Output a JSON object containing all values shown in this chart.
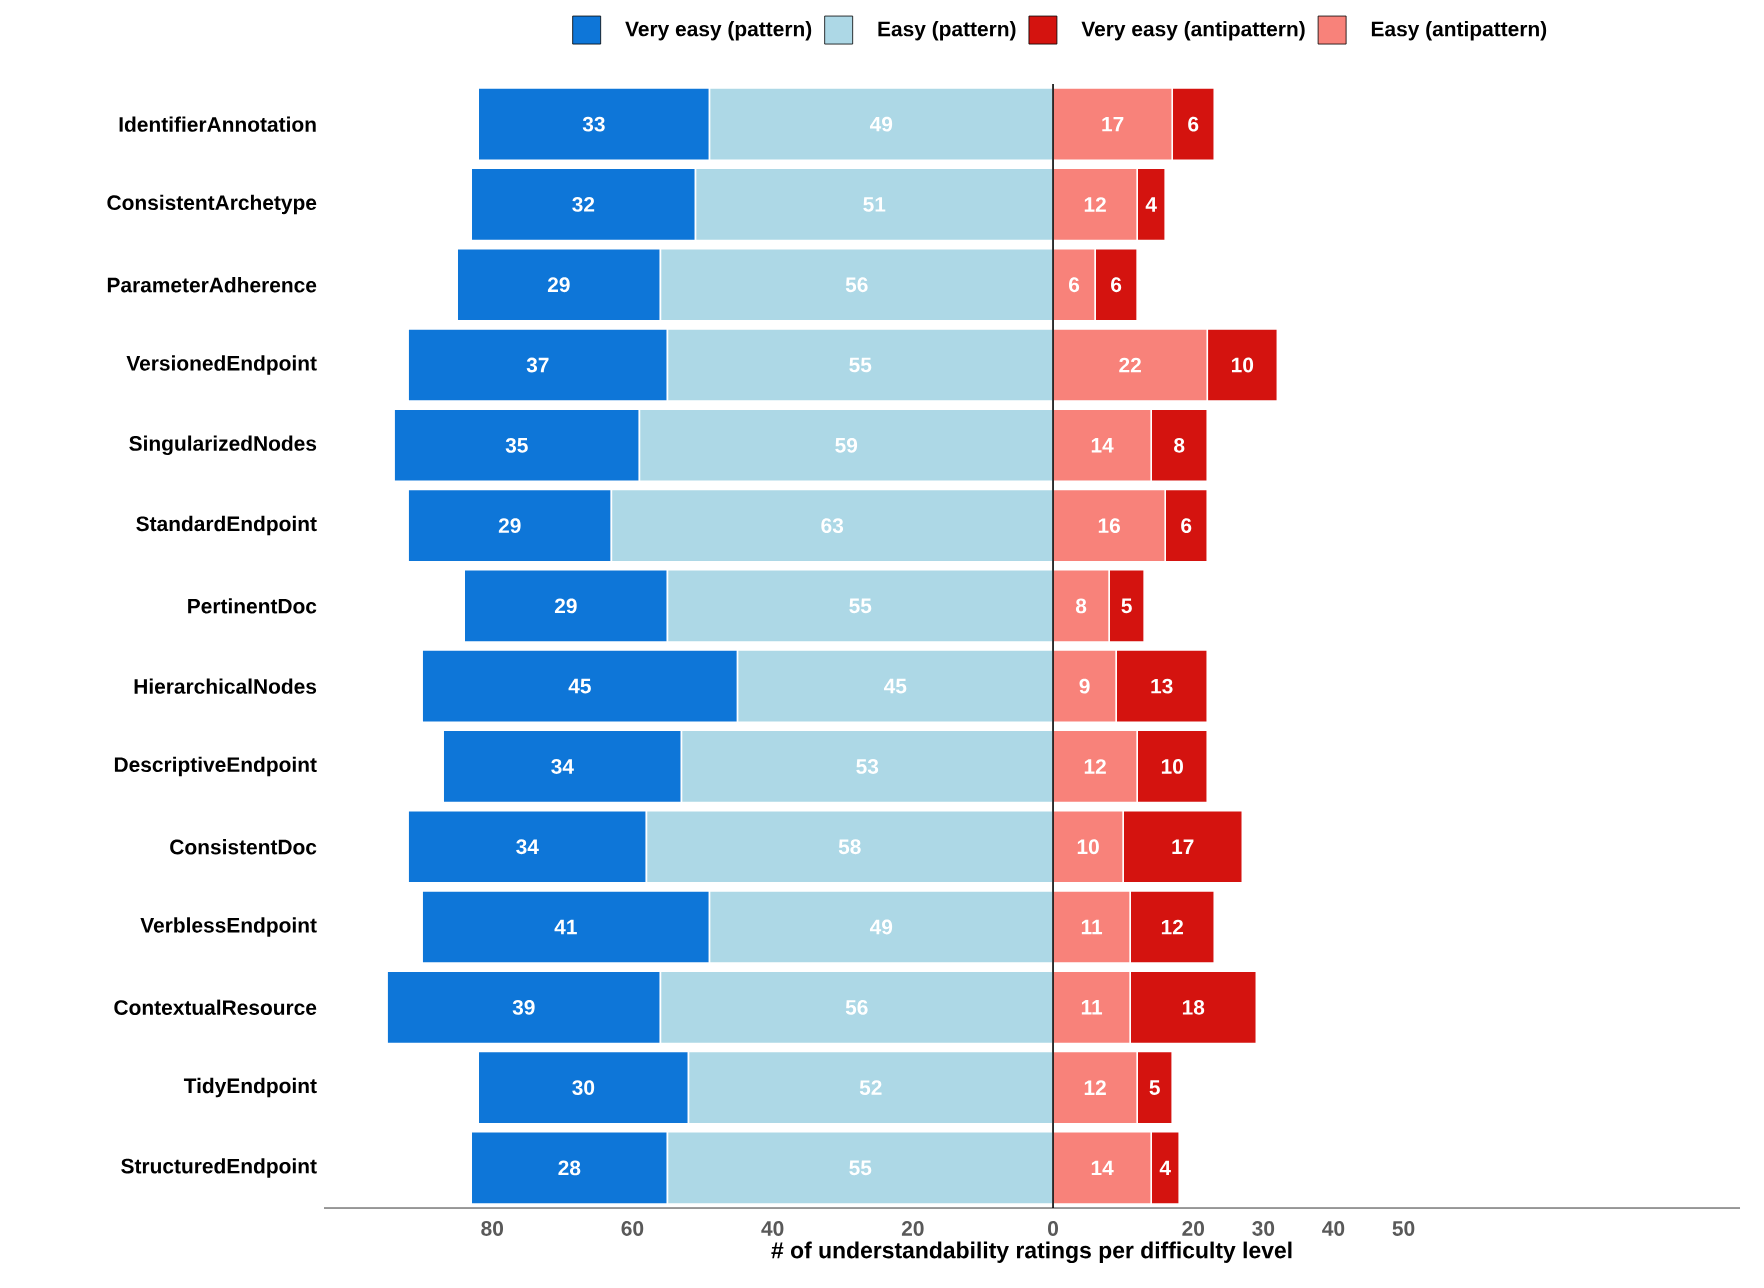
{
  "chart_data": {
    "type": "bar",
    "orientation": "horizontal",
    "legend": "top",
    "xlabel": "# of understandability ratings per difficulty level",
    "categories": [
      "IdentifierAnnotation",
      "ConsistentArchetype",
      "ParameterAdherence",
      "VersionedEndpoint",
      "SingularizedNodes",
      "StandardEndpoint",
      "PertinentDoc",
      "HierarchicalNodes",
      "DescriptiveEndpoint",
      "ConsistentDoc",
      "VerblessEndpoint",
      "ContextualResource",
      "TidyEndpoint",
      "StructuredEndpoint"
    ],
    "series": [
      {
        "name": "Very easy (pattern)",
        "color": "#0e76d8",
        "values": [
          33,
          32,
          29,
          37,
          35,
          29,
          29,
          45,
          34,
          34,
          41,
          39,
          30,
          28
        ],
        "base": [
          -82,
          -83,
          -85,
          -92,
          -94,
          -92,
          -84,
          -90,
          -87,
          -92,
          -90,
          -95,
          -82,
          -83
        ]
      },
      {
        "name": "Easy (pattern)",
        "color": "#add8e6",
        "values": [
          49,
          51,
          56,
          55,
          59,
          63,
          55,
          45,
          53,
          58,
          49,
          56,
          52,
          55
        ],
        "base": [
          -49,
          -51,
          -56,
          -55,
          -59,
          -63,
          -55,
          -45,
          -53,
          -58,
          -49,
          -56,
          -52,
          -55
        ]
      },
      {
        "name": "Very easy (antipattern)",
        "color": "#d4130f",
        "values": [
          6,
          4,
          6,
          10,
          8,
          6,
          5,
          13,
          10,
          17,
          12,
          18,
          5,
          4
        ],
        "base": [
          17,
          12,
          6,
          22,
          14,
          16,
          8,
          9,
          12,
          10,
          11,
          11,
          12,
          14
        ]
      },
      {
        "name": "Easy (antipattern)",
        "color": "#f8827a",
        "values": [
          17,
          12,
          6,
          22,
          14,
          16,
          8,
          9,
          12,
          10,
          11,
          11,
          12,
          14
        ],
        "base": [
          0,
          0,
          0,
          0,
          0,
          0,
          0,
          0,
          0,
          0,
          0,
          0,
          0,
          0
        ]
      }
    ],
    "data_labels": true,
    "xlim": [
      -104,
      98
    ],
    "xticks": [
      {
        "value": -80,
        "label": "80"
      },
      {
        "value": -60,
        "label": "60"
      },
      {
        "value": -40,
        "label": "40"
      },
      {
        "value": -20,
        "label": "20"
      },
      0,
      20,
      30,
      40,
      50
    ]
  }
}
